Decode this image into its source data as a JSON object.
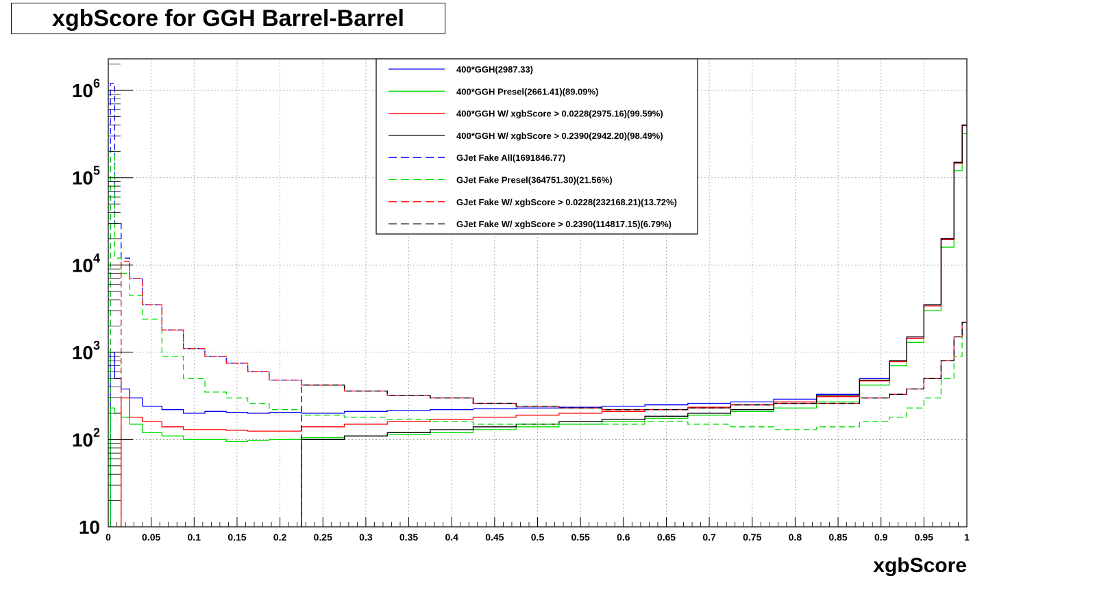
{
  "chart_data": {
    "type": "line",
    "title": "xgbScore for GGH Barrel-Barrel",
    "xlabel": "xgbScore",
    "ylabel": "",
    "xlim": [
      0,
      1
    ],
    "ylim": [
      10,
      2300000
    ],
    "yscale": "log",
    "grid": true,
    "legend_position": "top-center",
    "x_ticks": [
      "0",
      "0.05",
      "0.1",
      "0.15",
      "0.2",
      "0.25",
      "0.3",
      "0.35",
      "0.4",
      "0.45",
      "0.5",
      "0.55",
      "0.6",
      "0.65",
      "0.7",
      "0.75",
      "0.8",
      "0.85",
      "0.9",
      "0.95",
      "1"
    ],
    "y_ticks": [
      {
        "value": 10,
        "base": "10",
        "exp": ""
      },
      {
        "value": 100,
        "base": "10",
        "exp": "2"
      },
      {
        "value": 1000,
        "base": "10",
        "exp": "3"
      },
      {
        "value": 10000,
        "base": "10",
        "exp": "4"
      },
      {
        "value": 100000,
        "base": "10",
        "exp": "5"
      },
      {
        "value": 1000000,
        "base": "10",
        "exp": "6"
      }
    ],
    "x": [
      0.005,
      0.01,
      0.02,
      0.03,
      0.05,
      0.075,
      0.1,
      0.125,
      0.15,
      0.175,
      0.2,
      0.25,
      0.3,
      0.35,
      0.4,
      0.45,
      0.5,
      0.55,
      0.6,
      0.65,
      0.7,
      0.75,
      0.8,
      0.85,
      0.9,
      0.92,
      0.94,
      0.96,
      0.98,
      0.99,
      0.999
    ],
    "series": [
      {
        "name": "400*GGH(2987.33)",
        "color": "#0000ff",
        "dash": "solid",
        "values": [
          1000,
          500,
          380,
          300,
          240,
          220,
          200,
          210,
          205,
          200,
          205,
          200,
          210,
          215,
          220,
          225,
          230,
          235,
          240,
          250,
          260,
          270,
          290,
          330,
          500,
          800,
          1500,
          3500,
          20000,
          150000,
          400000
        ]
      },
      {
        "name": "400*GGH Presel(2661.41)(89.09%)",
        "color": "#00dd00",
        "dash": "solid",
        "values": [
          230,
          200,
          180,
          150,
          120,
          110,
          100,
          100,
          95,
          98,
          100,
          105,
          110,
          115,
          120,
          130,
          140,
          150,
          160,
          175,
          190,
          210,
          230,
          270,
          420,
          700,
          1300,
          3000,
          16000,
          120000,
          320000
        ]
      },
      {
        "name": "400*GGH W/ xgbScore > 0.0228(2975.16)(99.59%)",
        "color": "#ff0000",
        "dash": "solid",
        "values": [
          null,
          null,
          300,
          180,
          160,
          140,
          130,
          130,
          128,
          125,
          125,
          140,
          150,
          160,
          170,
          180,
          190,
          200,
          210,
          220,
          235,
          250,
          270,
          310,
          470,
          780,
          1450,
          3400,
          19500,
          145000,
          395000
        ]
      },
      {
        "name": "400*GGH W/ xgbScore > 0.2390(2942.20)(98.49%)",
        "color": "#000000",
        "dash": "solid",
        "values": [
          null,
          null,
          null,
          null,
          null,
          null,
          null,
          null,
          null,
          null,
          null,
          100,
          110,
          120,
          130,
          140,
          150,
          160,
          170,
          185,
          200,
          220,
          260,
          320,
          480,
          800,
          1500,
          3500,
          20000,
          150000,
          400000
        ]
      },
      {
        "name": "GJet Fake All(1691846.77)",
        "color": "#0000ff",
        "dash": "dashed",
        "values": [
          1200000,
          30000,
          12000,
          7000,
          3500,
          1800,
          1100,
          900,
          750,
          600,
          480,
          420,
          360,
          320,
          300,
          260,
          240,
          230,
          220,
          220,
          230,
          250,
          260,
          260,
          300,
          330,
          380,
          500,
          800,
          1500,
          2200
        ]
      },
      {
        "name": "GJet Fake Presel(364751.30)(21.56%)",
        "color": "#00dd00",
        "dash": "dashed",
        "values": [
          200000,
          12000,
          8000,
          4500,
          2400,
          900,
          500,
          350,
          300,
          260,
          220,
          190,
          180,
          170,
          160,
          150,
          150,
          150,
          150,
          160,
          150,
          140,
          130,
          140,
          160,
          180,
          230,
          300,
          500,
          900,
          1600
        ]
      },
      {
        "name": "GJet Fake W/ xgbScore > 0.0228(232168.21)(13.72%)",
        "color": "#ff0000",
        "dash": "dashed",
        "values": [
          null,
          null,
          11000,
          7000,
          3500,
          1800,
          1100,
          900,
          750,
          600,
          480,
          420,
          360,
          320,
          300,
          260,
          240,
          230,
          220,
          220,
          230,
          250,
          260,
          260,
          300,
          330,
          380,
          500,
          800,
          1500,
          2200
        ]
      },
      {
        "name": "GJet Fake W/ xgbScore > 0.2390(114817.15)(6.79%)",
        "color": "#000000",
        "dash": "dashed",
        "values": [
          null,
          null,
          null,
          null,
          null,
          null,
          null,
          null,
          null,
          null,
          null,
          420,
          360,
          320,
          300,
          260,
          240,
          230,
          220,
          220,
          230,
          250,
          260,
          260,
          300,
          330,
          380,
          500,
          800,
          1500,
          2200
        ]
      }
    ]
  }
}
